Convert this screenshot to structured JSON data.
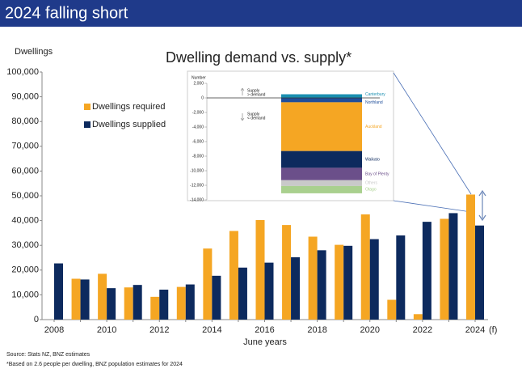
{
  "header": {
    "title": "2024 falling short"
  },
  "chart_data": [
    {
      "type": "bar",
      "title": "Dwelling demand vs. supply*",
      "ylabel": "Dwellings",
      "xlabel": "June years",
      "annotation": "(f)",
      "categories": [
        "2008",
        null,
        "2010",
        null,
        "2012",
        null,
        "2014",
        null,
        "2016",
        null,
        "2018",
        null,
        "2020",
        null,
        "2022",
        null,
        "2024"
      ],
      "series": [
        {
          "name": "Dwellings required",
          "color": "#f5a623",
          "values": [
            null,
            16500,
            18500,
            13000,
            9200,
            13200,
            28700,
            35800,
            40200,
            38200,
            33500,
            30200,
            42500,
            8000,
            2200,
            40700,
            50500
          ]
        },
        {
          "name": "Dwellings supplied",
          "color": "#0d2a5e",
          "values": [
            22700,
            16200,
            12700,
            14000,
            12100,
            14200,
            17700,
            21000,
            23000,
            25200,
            28000,
            29800,
            32500,
            34000,
            39500,
            43000,
            38000
          ]
        }
      ],
      "ylim": [
        0,
        100000
      ],
      "yticks": [
        0,
        {
          "value": 10000,
          "label": "10,000"
        },
        {
          "value": 20000,
          "label": "20,000"
        },
        {
          "value": 30000,
          "label": "30,000"
        },
        {
          "value": 40000,
          "label": "40,000"
        },
        {
          "value": 50000,
          "label": "50,000"
        },
        {
          "value": 60000,
          "label": "60,000"
        },
        {
          "value": 70000,
          "label": "70,000"
        },
        {
          "value": 80000,
          "label": "80,000"
        },
        {
          "value": 90000,
          "label": "90,000"
        },
        {
          "value": 100000,
          "label": "100,000"
        }
      ],
      "legend": "upper left"
    },
    {
      "type": "stacked_bar",
      "ylabel": "Number",
      "annotations": [
        "Supply",
        "> demand",
        "Supply",
        "< demand"
      ],
      "series": [
        {
          "name": "Canterbury",
          "color": "#1a8fb0",
          "values": [
            500
          ]
        },
        {
          "name": "Northland",
          "color": "#1f4e9a",
          "values": [
            -600
          ]
        },
        {
          "name": "Auckland",
          "color": "#f5a623",
          "values": [
            -6700
          ]
        },
        {
          "name": "Waikato",
          "color": "#0d2a5e",
          "values": [
            -2300
          ]
        },
        {
          "name": "Bay of Plenty",
          "color": "#6b4f8a",
          "values": [
            -1700
          ]
        },
        {
          "name": "Others",
          "color": "#c9c9c9",
          "values": [
            -800
          ]
        },
        {
          "name": "Otago",
          "color": "#a9d08e",
          "values": [
            -1000
          ]
        }
      ],
      "ylim": [
        -14000,
        2000
      ],
      "yticks": [
        {
          "value": 2000,
          "label": "2,000"
        },
        0,
        {
          "value": -2000,
          "label": "-2,000"
        },
        {
          "value": -4000,
          "label": "-4,000"
        },
        {
          "value": -6000,
          "label": "-6,000"
        },
        {
          "value": -8000,
          "label": "-8,000"
        },
        {
          "value": -10000,
          "label": "-10,000"
        },
        {
          "value": -12000,
          "label": "-12,000"
        },
        {
          "value": -14000,
          "label": "-14,000"
        }
      ]
    }
  ],
  "footnotes": [
    "Source: Stats NZ, BNZ estimates",
    "*Based on 2.6 people per dwelling, BNZ population estimates for 2024"
  ]
}
